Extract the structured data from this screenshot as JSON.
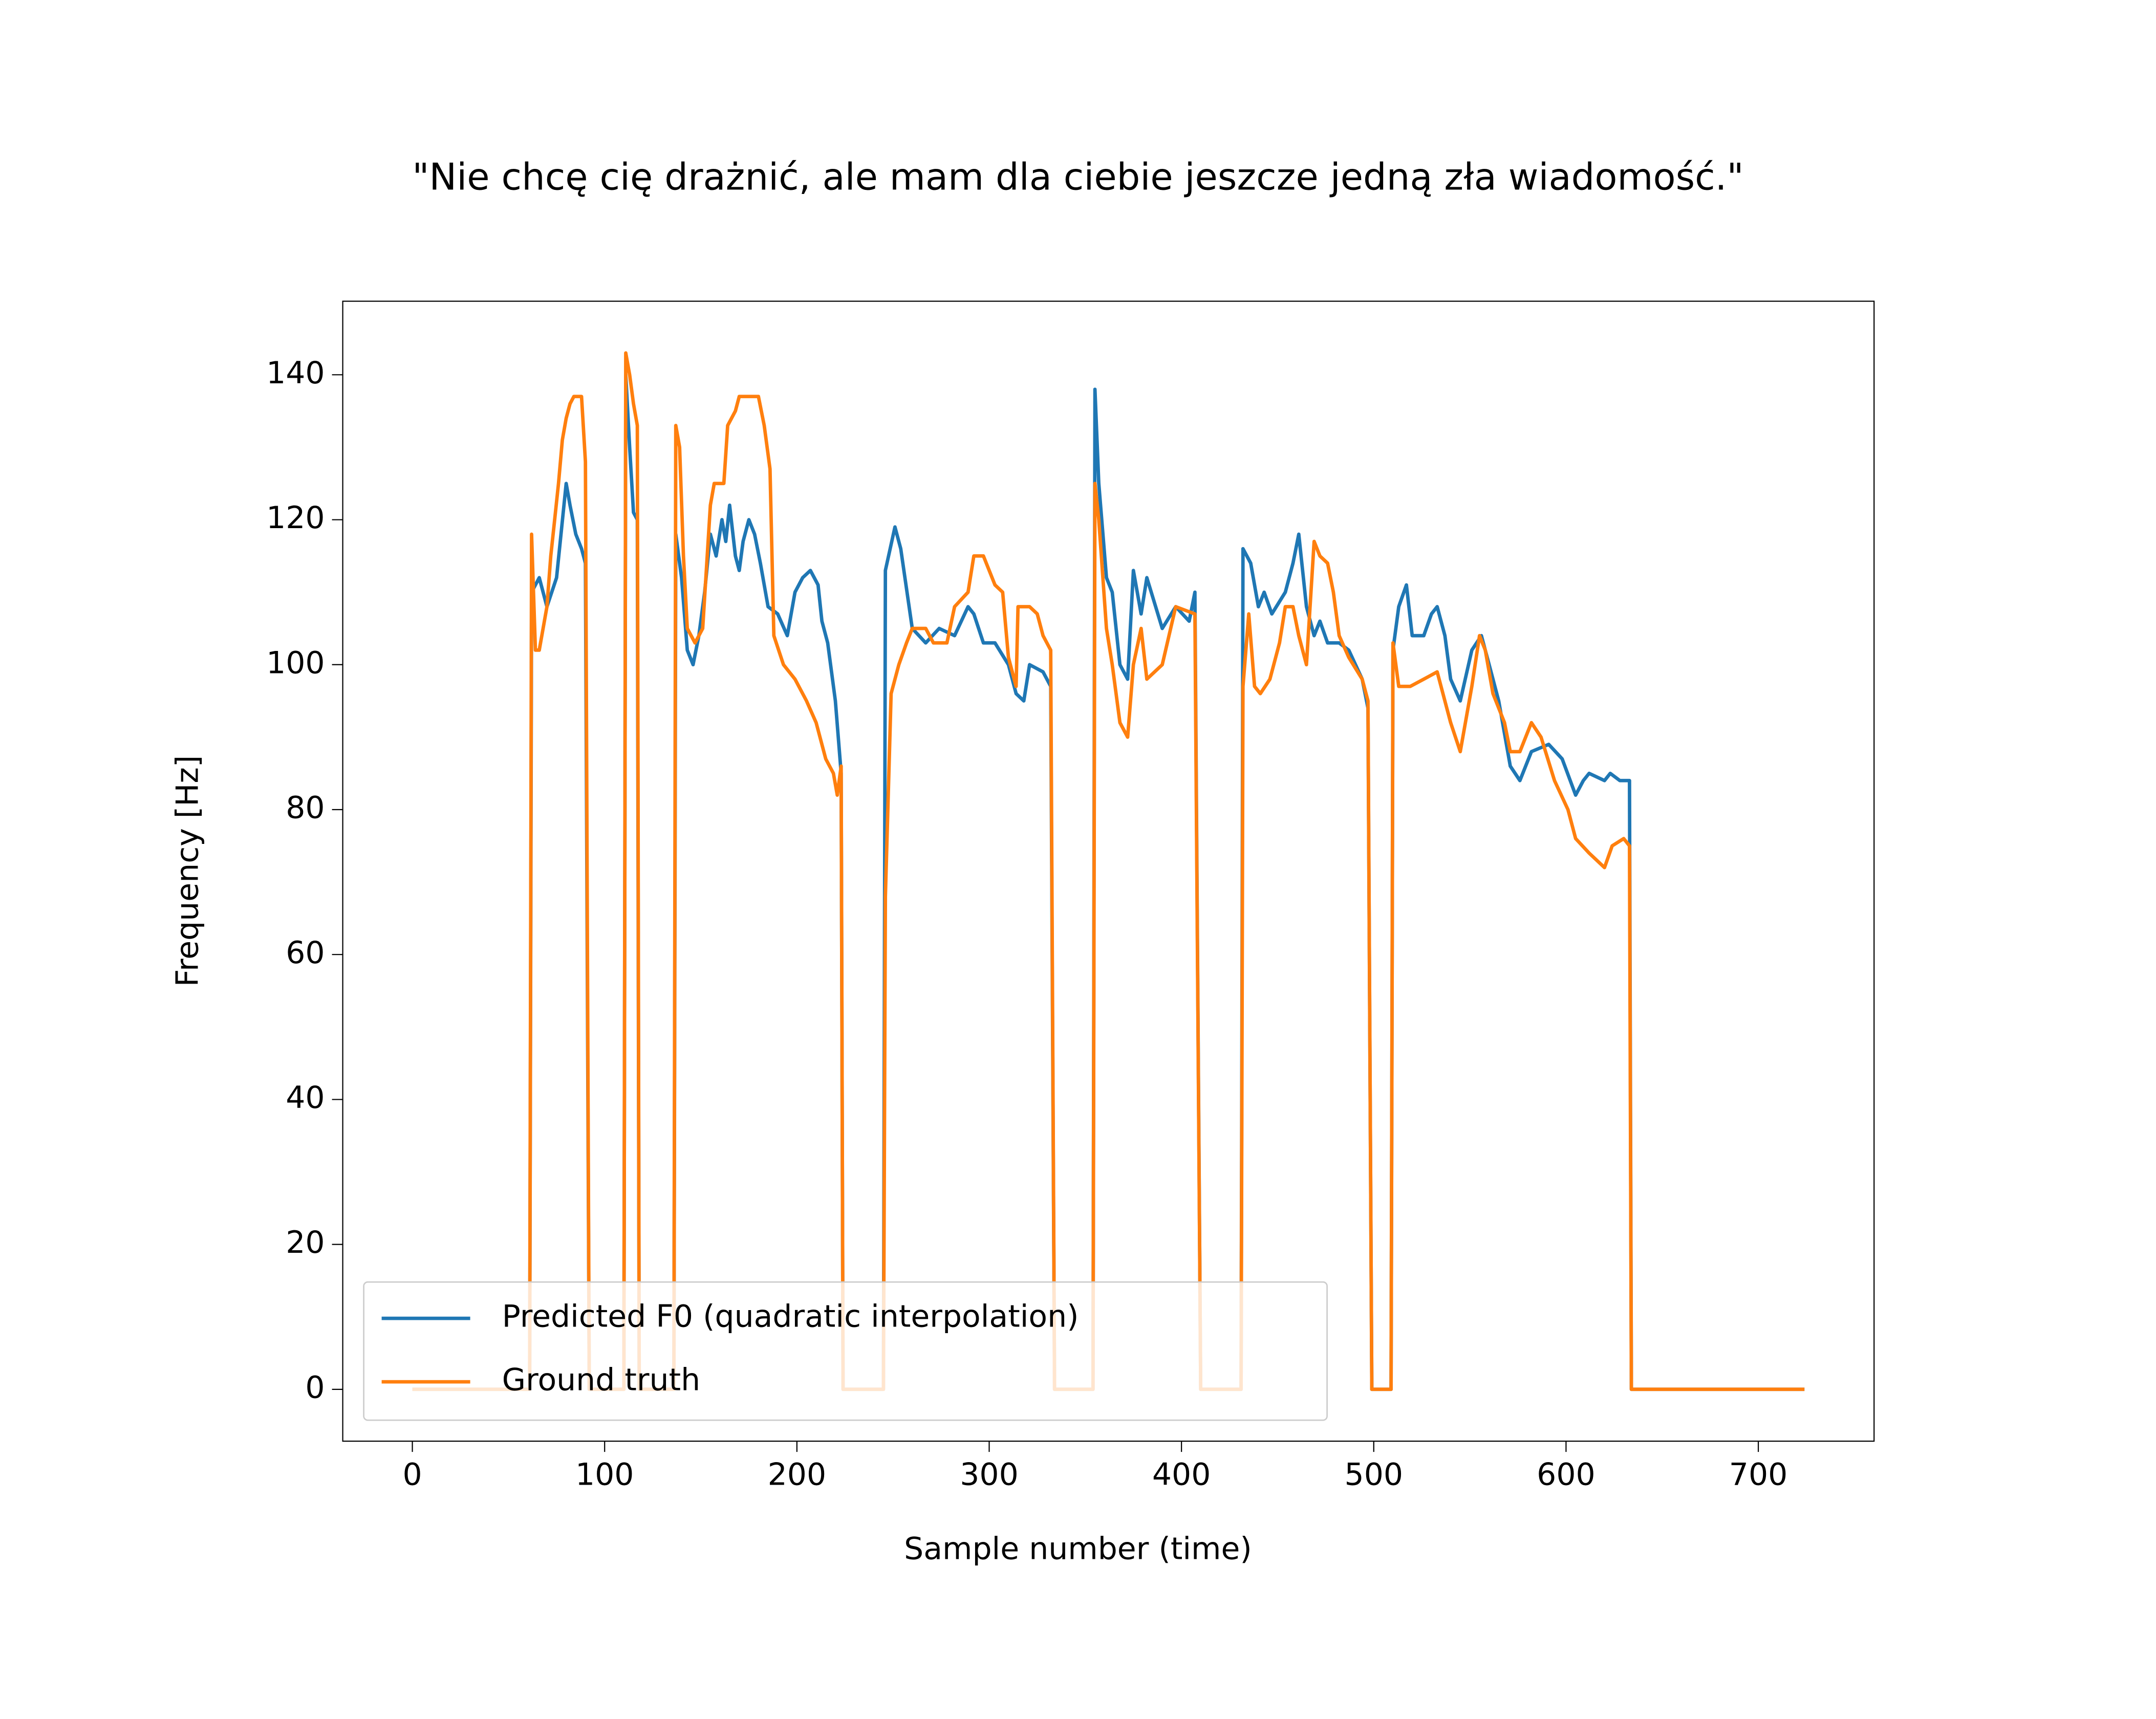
{
  "chart_data": {
    "type": "line",
    "title": "\"Nie chcę cię drażnić, ale mam dla ciebie jeszcze jedną zła wiadomość.\"",
    "xlabel": "Sample number (time)",
    "ylabel": "Frequency [Hz]",
    "xlim": [
      -36.2,
      760.2
    ],
    "ylim": [
      -7.15,
      150.15
    ],
    "xticks": [
      0,
      100,
      200,
      300,
      400,
      500,
      600,
      700
    ],
    "yticks": [
      0,
      20,
      40,
      60,
      80,
      100,
      120,
      140
    ],
    "grid": false,
    "legend": "lower left",
    "series": [
      {
        "name": "Predicted F0 (quadratic interpolation)",
        "color": "#1f77b4",
        "x": [
          0,
          61,
          62,
          66,
          70,
          75,
          80,
          82,
          85,
          88,
          90,
          92,
          110,
          111,
          113,
          115,
          117,
          118,
          136,
          137,
          140,
          143,
          146,
          149,
          152,
          155,
          158,
          161,
          163,
          165,
          168,
          170,
          172,
          175,
          178,
          181,
          185,
          190,
          195,
          199,
          203,
          207,
          211,
          213,
          216,
          220,
          223,
          224,
          245,
          246,
          251,
          254,
          260,
          267,
          274,
          282,
          289,
          292,
          297,
          303,
          310,
          314,
          318,
          321,
          328,
          332,
          334,
          354,
          355,
          357,
          361,
          364,
          368,
          372,
          375,
          379,
          382,
          390,
          397,
          404,
          407,
          410,
          431,
          432,
          436,
          440,
          443,
          447,
          454,
          458,
          461,
          465,
          469,
          472,
          476,
          482,
          487,
          494,
          497,
          499,
          509,
          510,
          513,
          517,
          520,
          526,
          530,
          533,
          537,
          540,
          545,
          551,
          556,
          560,
          565,
          571,
          576,
          582,
          591,
          598,
          605,
          609,
          612,
          620,
          623,
          628,
          633,
          634,
          724
        ],
        "values": [
          0,
          0,
          110,
          112,
          108,
          112,
          125,
          122,
          118,
          116,
          114,
          0,
          0,
          140,
          130,
          121,
          120,
          0,
          0,
          118,
          112,
          102,
          100,
          104,
          110,
          118,
          115,
          120,
          117,
          122,
          115,
          113,
          117,
          120,
          118,
          114,
          108,
          107,
          104,
          110,
          112,
          113,
          111,
          106,
          103,
          95,
          85,
          0,
          0,
          113,
          119,
          116,
          105,
          103,
          105,
          104,
          108,
          107,
          103,
          103,
          100,
          96,
          95,
          100,
          99,
          97,
          0,
          0,
          138,
          125,
          112,
          110,
          100,
          98,
          113,
          107,
          112,
          105,
          108,
          106,
          110,
          0,
          0,
          116,
          114,
          108,
          110,
          107,
          110,
          114,
          118,
          108,
          104,
          106,
          103,
          103,
          102,
          98,
          94,
          0,
          0,
          102,
          108,
          111,
          104,
          104,
          107,
          108,
          104,
          98,
          95,
          102,
          104,
          100,
          95,
          86,
          84,
          88,
          89,
          87,
          82,
          84,
          85,
          84,
          85,
          84,
          84,
          0,
          0
        ]
      },
      {
        "name": "Ground truth",
        "color": "#ff7f0e",
        "x": [
          0,
          61,
          62,
          64,
          66,
          68,
          70,
          72,
          74,
          76,
          78,
          80,
          82,
          84,
          88,
          90,
          92,
          110,
          111,
          113,
          115,
          117,
          118,
          136,
          137,
          139,
          141,
          143,
          147,
          151,
          155,
          157,
          162,
          164,
          168,
          170,
          180,
          183,
          186,
          188,
          193,
          199,
          205,
          210,
          215,
          219,
          221,
          223,
          224,
          245,
          246,
          249,
          253,
          257,
          260,
          267,
          271,
          278,
          282,
          289,
          292,
          297,
          303,
          307,
          310,
          314,
          315,
          321,
          325,
          328,
          332,
          334,
          354,
          355,
          357,
          361,
          364,
          368,
          372,
          375,
          379,
          382,
          390,
          397,
          407,
          410,
          431,
          432,
          435,
          438,
          441,
          446,
          451,
          454,
          458,
          461,
          465,
          469,
          472,
          476,
          479,
          482,
          487,
          494,
          497,
          499,
          509,
          510,
          513,
          519,
          526,
          533,
          540,
          545,
          551,
          555,
          558,
          562,
          568,
          571,
          576,
          582,
          587,
          594,
          601,
          605,
          612,
          620,
          624,
          630,
          633,
          634,
          724
        ],
        "values": [
          0,
          0,
          118,
          102,
          102,
          105,
          108,
          115,
          120,
          125,
          131,
          134,
          136,
          137,
          137,
          128,
          0,
          0,
          143,
          140,
          136,
          133,
          0,
          0,
          133,
          130,
          115,
          105,
          103,
          105,
          122,
          125,
          125,
          133,
          135,
          137,
          137,
          133,
          127,
          104,
          100,
          98,
          95,
          92,
          87,
          85,
          82,
          86,
          0,
          0,
          68,
          96,
          100,
          103,
          105,
          105,
          103,
          103,
          108,
          110,
          115,
          115,
          111,
          110,
          101,
          97,
          108,
          108,
          107,
          104,
          102,
          0,
          0,
          125,
          120,
          105,
          100,
          92,
          90,
          100,
          105,
          98,
          100,
          108,
          107,
          0,
          0,
          97,
          107,
          97,
          96,
          98,
          103,
          108,
          108,
          104,
          100,
          117,
          115,
          114,
          110,
          104,
          101,
          98,
          95,
          0,
          0,
          103,
          97,
          97,
          98,
          99,
          92,
          88,
          97,
          104,
          102,
          96,
          92,
          88,
          88,
          92,
          90,
          84,
          80,
          76,
          74,
          72,
          75,
          76,
          75,
          0,
          0
        ]
      }
    ]
  }
}
